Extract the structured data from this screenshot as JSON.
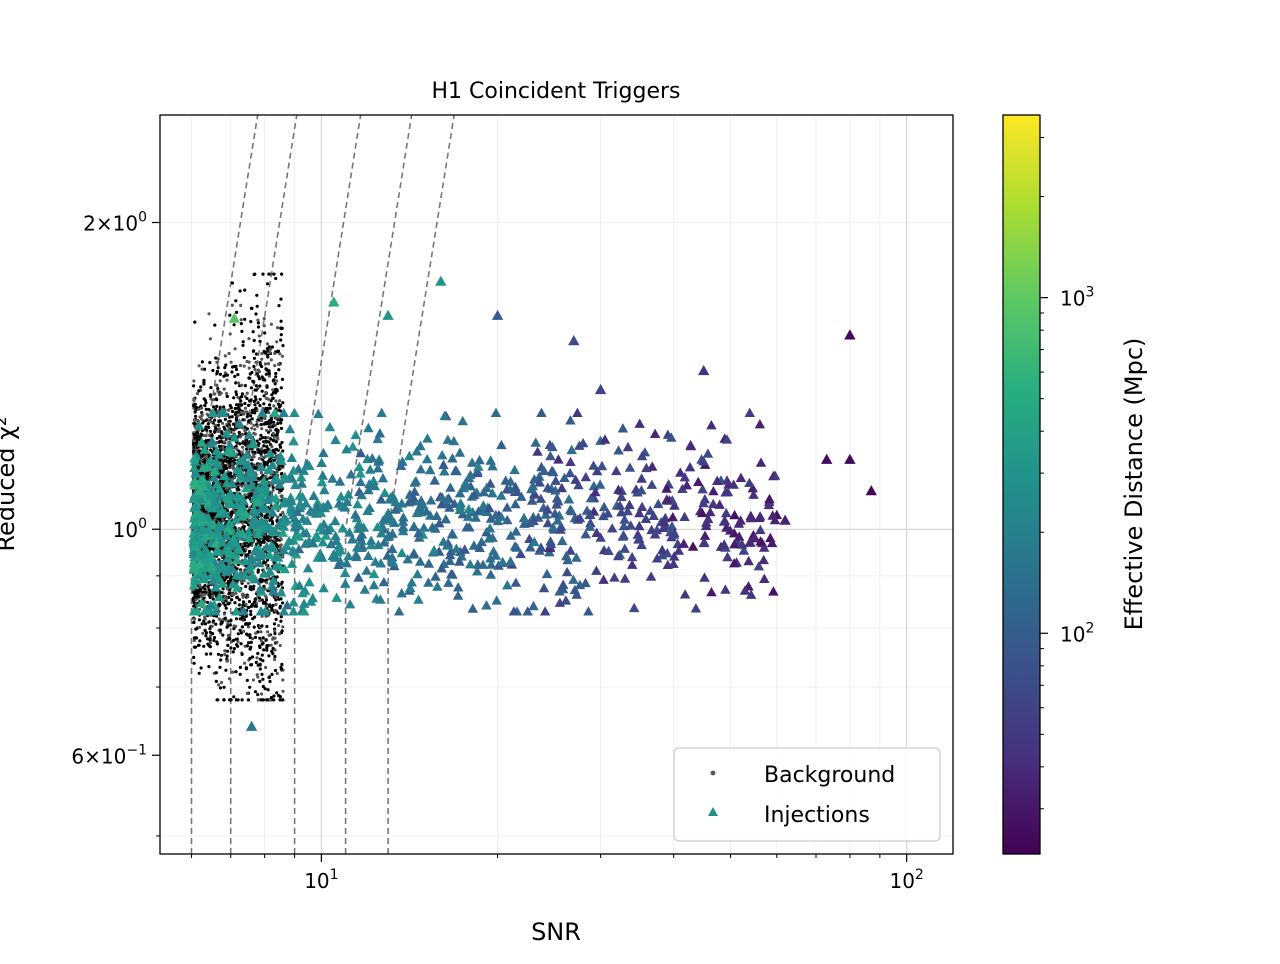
{
  "chart_data": {
    "type": "scatter",
    "title": "H1 Coincident Triggers",
    "xlabel": "SNR",
    "ylabel": "Reduced χ²",
    "xscale": "log",
    "yscale": "log",
    "xlim": [
      5.3,
      120
    ],
    "ylim": [
      0.48,
      2.55
    ],
    "grid": true,
    "legend_position": "lower-right",
    "x_major_ticks": [
      {
        "value": 10,
        "base": "10",
        "exp": "1"
      },
      {
        "value": 100,
        "base": "10",
        "exp": "2"
      }
    ],
    "y_major_ticks": [
      {
        "value": 2,
        "mant": "2",
        "base": "10",
        "exp": "0"
      },
      {
        "value": 1,
        "mant": "",
        "base": "10",
        "exp": "0"
      },
      {
        "value": 0.6,
        "mant": "6",
        "base": "10",
        "exp": "−1"
      }
    ],
    "legend": [
      {
        "label": "Background",
        "marker": "dot"
      },
      {
        "label": "Injections",
        "marker": "triangle"
      }
    ],
    "colorbar": {
      "label": "Effective Distance (Mpc)",
      "scale": "log",
      "range": [
        22,
        3500
      ],
      "colormap": "viridis",
      "ticks": [
        {
          "value": 100,
          "base": "10",
          "exp": "2"
        },
        {
          "value": 1000,
          "base": "10",
          "exp": "3"
        }
      ]
    },
    "threshold_curves": [
      {
        "snr_min": 6.0,
        "chisq_at_min": 1.0
      },
      {
        "snr_min": 7.0,
        "chisq_at_min": 1.0
      },
      {
        "snr_min": 9.0,
        "chisq_at_min": 1.0
      },
      {
        "snr_min": 11.0,
        "chisq_at_min": 1.0
      },
      {
        "snr_min": 13.0,
        "chisq_at_min": 1.0
      }
    ],
    "background_points": {
      "count": 4200,
      "snr_range": [
        6.05,
        8.6
      ],
      "chisq_range": [
        0.68,
        1.78
      ],
      "color": "#000000"
    },
    "injection_points_highlighted": [
      {
        "snr": 80,
        "chisq": 1.55,
        "dist": 24
      },
      {
        "snr": 73,
        "chisq": 1.17,
        "dist": 25
      },
      {
        "snr": 80,
        "chisq": 1.17,
        "dist": 24
      },
      {
        "snr": 87,
        "chisq": 1.09,
        "dist": 24
      },
      {
        "snr": 62,
        "chisq": 1.02,
        "dist": 36
      },
      {
        "snr": 55,
        "chisq": 0.98,
        "dist": 38
      },
      {
        "snr": 54,
        "chisq": 0.97,
        "dist": 40
      },
      {
        "snr": 45,
        "chisq": 1.43,
        "dist": 48
      },
      {
        "snr": 27,
        "chisq": 1.53,
        "dist": 70
      },
      {
        "snr": 20,
        "chisq": 1.62,
        "dist": 100
      },
      {
        "snr": 30,
        "chisq": 1.37,
        "dist": 65
      },
      {
        "snr": 16,
        "chisq": 1.75,
        "dist": 300
      },
      {
        "snr": 13,
        "chisq": 1.62,
        "dist": 320
      },
      {
        "snr": 10.5,
        "chisq": 1.67,
        "dist": 500
      },
      {
        "snr": 7.6,
        "chisq": 0.64,
        "dist": 170
      },
      {
        "snr": 7.1,
        "chisq": 1.61,
        "dist": 900
      }
    ],
    "injection_points": {
      "count": 1100,
      "snr_range": [
        6.05,
        60
      ],
      "chisq_range": [
        0.83,
        1.3
      ]
    }
  }
}
